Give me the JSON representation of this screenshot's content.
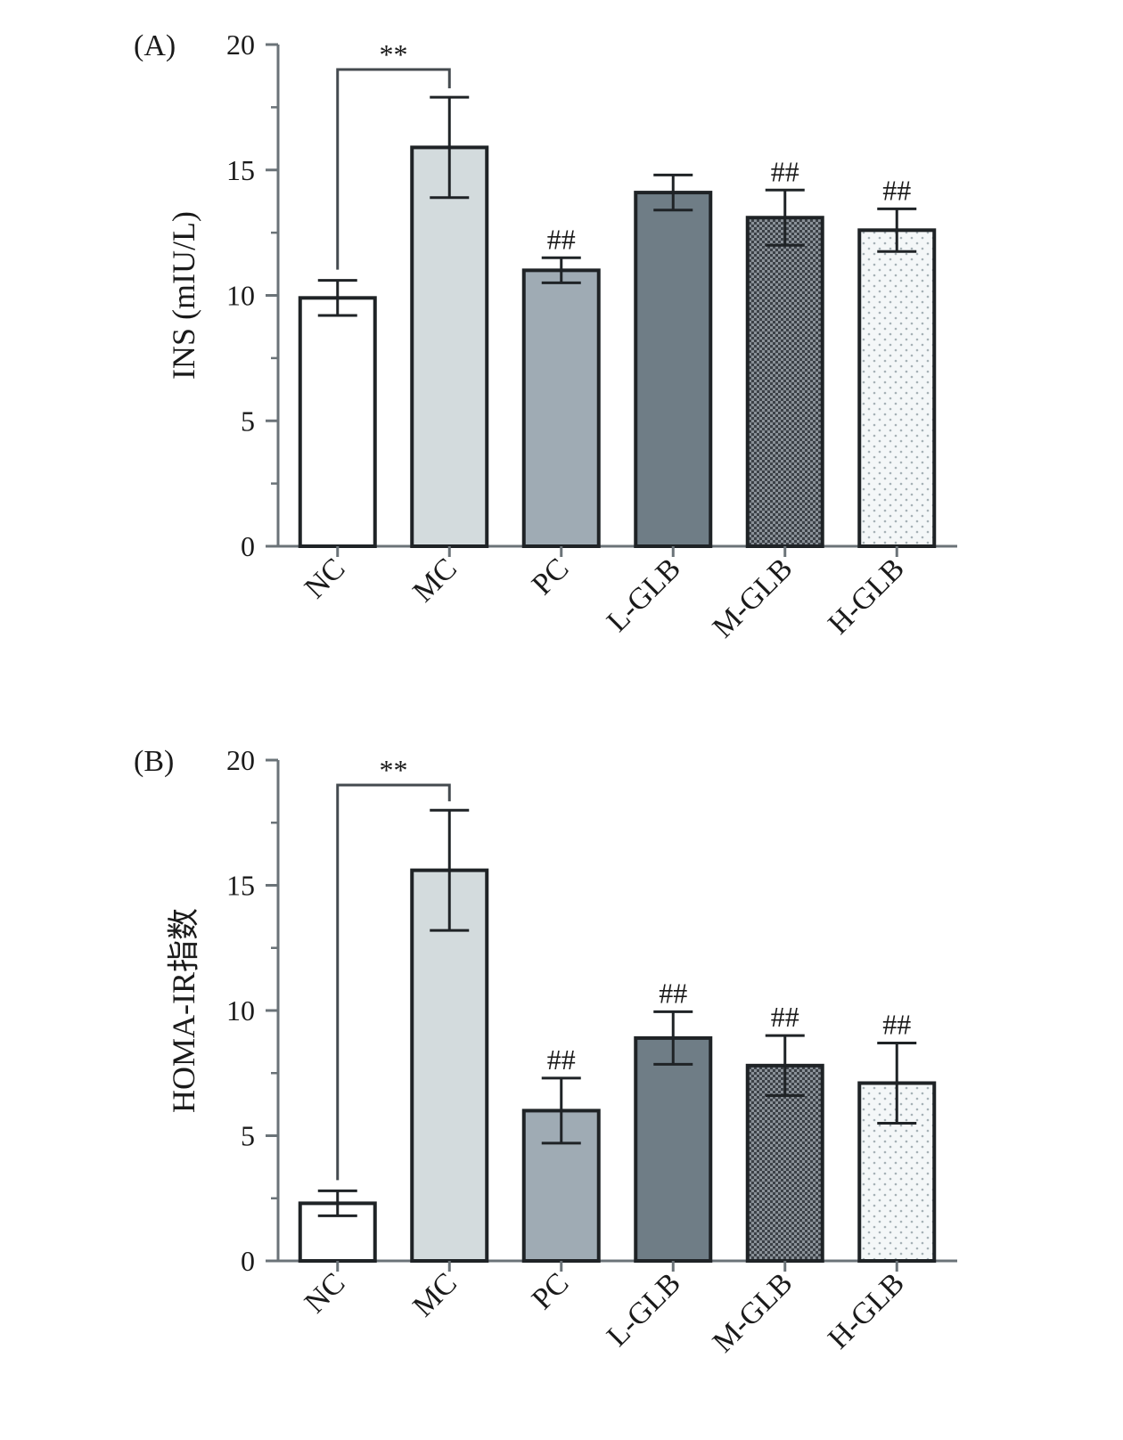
{
  "chart_data": [
    {
      "type": "bar",
      "panel_label": "(A)",
      "ylabel": "INS (mIU/L)",
      "xlabel": "",
      "ylim": [
        0,
        20
      ],
      "yticks": [
        "0",
        "5",
        "10",
        "15",
        "20"
      ],
      "categories": [
        "NC",
        "MC",
        "PC",
        "L-GLB",
        "M-GLB",
        "H-GLB"
      ],
      "values": [
        9.9,
        15.9,
        11.0,
        14.1,
        13.1,
        12.6
      ],
      "errors": [
        0.7,
        2.0,
        0.5,
        0.7,
        1.1,
        0.85
      ],
      "fills": [
        "#ffffff",
        "#d3dbdd",
        "#9fabb4",
        "#6f7d86",
        "#4a4f55",
        "#f4f7f8"
      ],
      "patterns": [
        "none",
        "none",
        "none",
        "none",
        "checker",
        "dots"
      ],
      "bracket": {
        "from": 0,
        "to": 1,
        "label": "**"
      },
      "annotations": [
        "",
        "",
        "##",
        "",
        "##",
        "##"
      ]
    },
    {
      "type": "bar",
      "panel_label": "(B)",
      "ylabel": "HOMA-IR指数",
      "xlabel": "",
      "ylim": [
        0,
        20
      ],
      "yticks": [
        "0",
        "5",
        "10",
        "15",
        "20"
      ],
      "categories": [
        "NC",
        "MC",
        "PC",
        "L-GLB",
        "M-GLB",
        "H-GLB"
      ],
      "values": [
        2.3,
        15.6,
        6.0,
        8.9,
        7.8,
        7.1
      ],
      "errors": [
        0.5,
        2.4,
        1.3,
        1.05,
        1.2,
        1.6
      ],
      "fills": [
        "#ffffff",
        "#d3dbdd",
        "#9fabb4",
        "#6f7d86",
        "#4a4f55",
        "#f4f7f8"
      ],
      "patterns": [
        "none",
        "none",
        "none",
        "none",
        "checker",
        "dots"
      ],
      "bracket": {
        "from": 0,
        "to": 1,
        "label": "**"
      },
      "annotations": [
        "",
        "",
        "##",
        "##",
        "##",
        "##"
      ]
    }
  ]
}
